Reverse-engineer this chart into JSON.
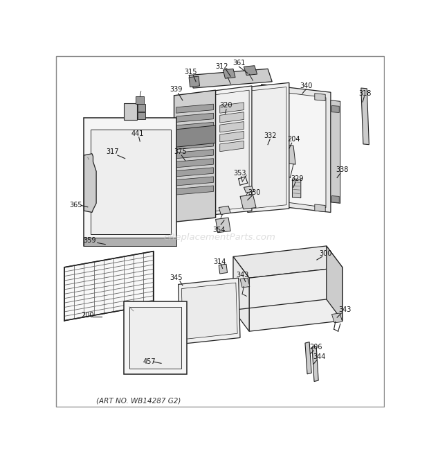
{
  "bg_color": "#ffffff",
  "watermark": "eReplacementParts.com",
  "art_no": "(ART NO. WB14287 G2)",
  "text_color": "#111111",
  "line_color": "#222222",
  "gray_light": "#e8e8e8",
  "gray_mid": "#cccccc",
  "gray_dark": "#999999",
  "gray_darker": "#666666"
}
